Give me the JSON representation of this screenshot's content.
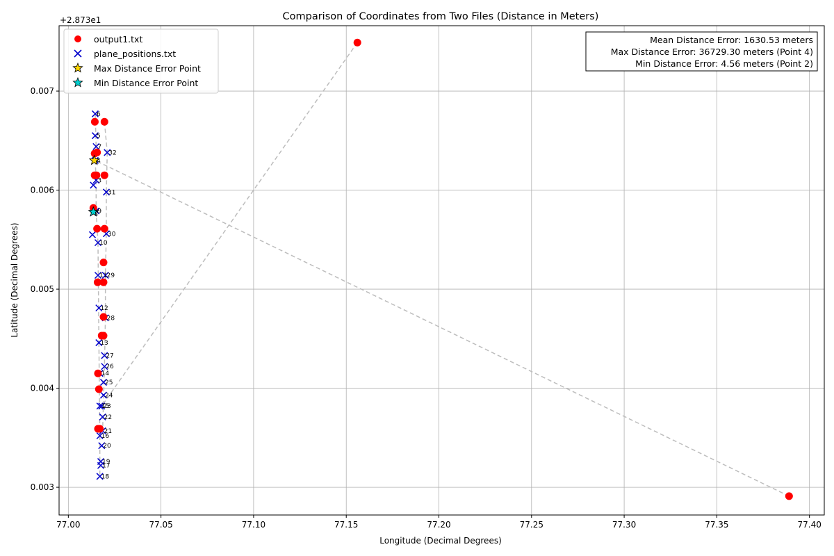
{
  "chart_data": {
    "type": "scatter",
    "title": "Comparison of Coordinates from Two Files (Distance in Meters)",
    "xlabel": "Longitude (Decimal Degrees)",
    "ylabel": "Latitude (Decimal Degrees)",
    "y_offset_label": "+2.873e1",
    "xlim": [
      76.995,
      77.408
    ],
    "ylim": [
      28.73272,
      28.73766
    ],
    "x_ticks": [
      "77.00",
      "77.05",
      "77.10",
      "77.15",
      "77.20",
      "77.25",
      "77.30",
      "77.35",
      "77.40"
    ],
    "y_ticks": [
      "0.003",
      "0.004",
      "0.005",
      "0.006",
      "0.007"
    ],
    "grid": true,
    "legend_position": "upper left",
    "stats_box_position": "upper right",
    "colors": {
      "output": "#ff0000",
      "plane": "#0000cc",
      "max_marker": "#ffd700",
      "min_marker": "#00d0d0",
      "connector": "#bdbdbd",
      "grid": "#b0b0b0"
    },
    "legend": [
      {
        "label": "output1.txt",
        "marker": "circle"
      },
      {
        "label": "plane_positions.txt",
        "marker": "x"
      },
      {
        "label": "Max Distance Error Point",
        "marker": "star-gold"
      },
      {
        "label": "Min Distance Error Point",
        "marker": "star-cyan"
      }
    ],
    "stats": {
      "mean": "Mean Distance Error: 1630.53 meters",
      "max": "Max Distance Error: 36729.30 meters (Point 4)",
      "min": "Min Distance Error: 4.56 meters (Point 2)"
    },
    "max_point": {
      "x": 77.014,
      "y": 28.7363
    },
    "min_point": {
      "x": 77.0135,
      "y": 28.73578
    },
    "series": [
      {
        "name": "output1.txt",
        "marker": "circle",
        "points": [
          [
            77.0142,
            28.73615
          ],
          [
            77.0135,
            28.73582
          ],
          [
            77.0142,
            28.73637
          ],
          [
            77.389,
            28.73291
          ],
          [
            77.0143,
            28.73669
          ],
          [
            77.0155,
            28.73638
          ],
          [
            77.0152,
            28.73615
          ],
          [
            77.0155,
            28.73561
          ],
          [
            77.0158,
            28.73507
          ],
          [
            77.016,
            28.73415
          ],
          [
            77.0165,
            28.73399
          ],
          [
            77.016,
            28.73359
          ],
          [
            77.017,
            28.73359
          ],
          [
            77.018,
            28.73453
          ],
          [
            77.019,
            28.73453
          ],
          [
            77.019,
            28.73472
          ],
          [
            77.019,
            28.73507
          ],
          [
            77.019,
            28.73527
          ],
          [
            77.0195,
            28.73561
          ],
          [
            77.0195,
            28.73615
          ],
          [
            77.0195,
            28.73669
          ],
          [
            77.156,
            28.73749
          ]
        ]
      },
      {
        "name": "plane_positions.txt",
        "marker": "x",
        "points": [
          {
            "x": 77.0145,
            "y": 28.73677,
            "label": "6"
          },
          {
            "x": 77.0145,
            "y": 28.73655,
            "label": "5"
          },
          {
            "x": 77.015,
            "y": 28.73644,
            "label": "7"
          },
          {
            "x": 77.0145,
            "y": 28.7363,
            "label": "4"
          },
          {
            "x": 77.015,
            "y": 28.7361,
            "label": "3"
          },
          {
            "x": 77.0135,
            "y": 28.73605,
            "label": ""
          },
          {
            "x": 77.015,
            "y": 28.73579,
            "label": "9"
          },
          {
            "x": 77.0135,
            "y": 28.73577,
            "label": "2"
          },
          {
            "x": 77.013,
            "y": 28.73555,
            "label": ""
          },
          {
            "x": 77.016,
            "y": 28.73547,
            "label": "10"
          },
          {
            "x": 77.016,
            "y": 28.73514,
            "label": "11"
          },
          {
            "x": 77.0165,
            "y": 28.73481,
            "label": "12"
          },
          {
            "x": 77.0165,
            "y": 28.73446,
            "label": "13"
          },
          {
            "x": 77.017,
            "y": 28.73415,
            "label": "14"
          },
          {
            "x": 77.017,
            "y": 28.73382,
            "label": "15"
          },
          {
            "x": 77.017,
            "y": 28.73352,
            "label": "16"
          },
          {
            "x": 77.0175,
            "y": 28.73322,
            "label": "17"
          },
          {
            "x": 77.017,
            "y": 28.73311,
            "label": "18"
          },
          {
            "x": 77.0175,
            "y": 28.73326,
            "label": "19"
          },
          {
            "x": 77.018,
            "y": 28.73342,
            "label": "20"
          },
          {
            "x": 77.0185,
            "y": 28.73357,
            "label": "21"
          },
          {
            "x": 77.0185,
            "y": 28.73371,
            "label": "22"
          },
          {
            "x": 77.018,
            "y": 28.73382,
            "label": "23"
          },
          {
            "x": 77.019,
            "y": 28.73393,
            "label": "24"
          },
          {
            "x": 77.019,
            "y": 28.73406,
            "label": "25"
          },
          {
            "x": 77.0195,
            "y": 28.73422,
            "label": "26"
          },
          {
            "x": 77.0195,
            "y": 28.73433,
            "label": "27"
          },
          {
            "x": 77.02,
            "y": 28.73471,
            "label": "28"
          },
          {
            "x": 77.02,
            "y": 28.73514,
            "label": "29"
          },
          {
            "x": 77.0205,
            "y": 28.73556,
            "label": "30"
          },
          {
            "x": 77.0205,
            "y": 28.73598,
            "label": "31"
          },
          {
            "x": 77.021,
            "y": 28.73638,
            "label": "32"
          }
        ]
      }
    ],
    "connector_lines": [
      {
        "from": [
          77.156,
          28.73749
        ],
        "to": [
          77.018,
          28.73382
        ]
      },
      {
        "from": [
          77.389,
          28.73291
        ],
        "to": [
          77.0145,
          28.7363
        ]
      },
      {
        "from": [
          77.0145,
          28.73677
        ],
        "to": [
          77.015,
          28.73644
        ]
      },
      {
        "from": [
          77.015,
          28.73644
        ],
        "to": [
          77.0145,
          28.7363
        ]
      },
      {
        "from": [
          77.0145,
          28.7363
        ],
        "to": [
          77.015,
          28.7361
        ]
      },
      {
        "from": [
          77.015,
          28.7361
        ],
        "to": [
          77.015,
          28.73579
        ]
      },
      {
        "from": [
          77.015,
          28.73579
        ],
        "to": [
          77.016,
          28.73547
        ]
      },
      {
        "from": [
          77.016,
          28.73547
        ],
        "to": [
          77.0165,
          28.73446
        ]
      },
      {
        "from": [
          77.0165,
          28.73446
        ],
        "to": [
          77.017,
          28.73352
        ]
      },
      {
        "from": [
          77.017,
          28.73352
        ],
        "to": [
          77.017,
          28.73311
        ]
      },
      {
        "from": [
          77.0195,
          28.73669
        ],
        "to": [
          77.021,
          28.73638
        ]
      },
      {
        "from": [
          77.021,
          28.73638
        ],
        "to": [
          77.0205,
          28.73598
        ]
      },
      {
        "from": [
          77.0205,
          28.73598
        ],
        "to": [
          77.0205,
          28.73556
        ]
      },
      {
        "from": [
          77.0205,
          28.73556
        ],
        "to": [
          77.02,
          28.73514
        ]
      },
      {
        "from": [
          77.02,
          28.73514
        ],
        "to": [
          77.02,
          28.73471
        ]
      },
      {
        "from": [
          77.02,
          28.73471
        ],
        "to": [
          77.0195,
          28.73422
        ]
      },
      {
        "from": [
          77.0195,
          28.73422
        ],
        "to": [
          77.0185,
          28.73357
        ]
      }
    ]
  }
}
